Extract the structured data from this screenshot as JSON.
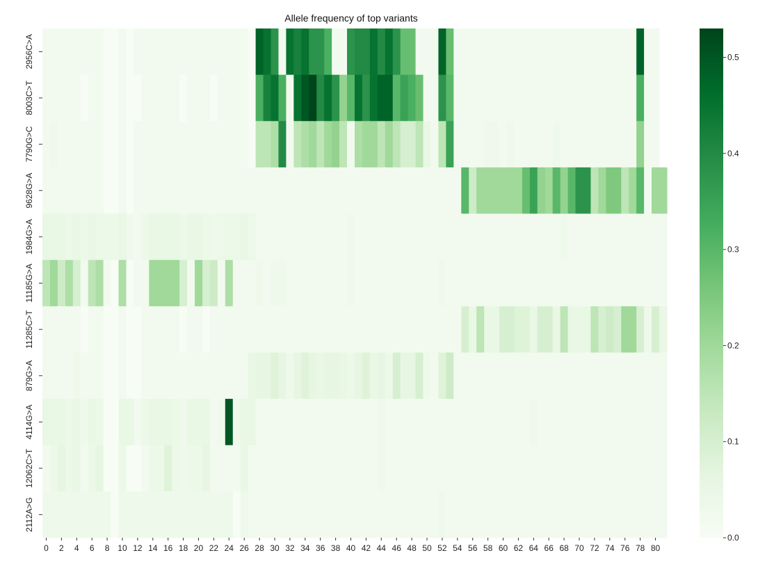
{
  "chart_data": {
    "type": "heatmap",
    "title": "Allele frequency of top variants",
    "xlabel": "",
    "ylabel": "",
    "x_tick_labels": [
      "0",
      "2",
      "4",
      "6",
      "8",
      "10",
      "12",
      "14",
      "16",
      "18",
      "20",
      "22",
      "24",
      "26",
      "28",
      "30",
      "32",
      "34",
      "36",
      "38",
      "40",
      "42",
      "44",
      "46",
      "48",
      "50",
      "52",
      "54",
      "56",
      "58",
      "60",
      "62",
      "64",
      "66",
      "68",
      "70",
      "72",
      "74",
      "76",
      "78",
      "80"
    ],
    "rows": [
      "2956C>A",
      "8003C>T",
      "7790G>C",
      "9628G>A",
      "1984G>A",
      "11185G>A",
      "11285C>T",
      "879G>A",
      "4114G>A",
      "12062C>T",
      "2112A>G"
    ],
    "colormap": "Greens",
    "colorbar": {
      "min": 0.0,
      "max": 0.53,
      "ticks": [
        "0.0",
        "0.1",
        "0.2",
        "0.3",
        "0.4",
        "0.5"
      ]
    },
    "values": [
      [
        0.02,
        0.02,
        0.02,
        0.02,
        0.02,
        0.02,
        0.02,
        0.02,
        0.0,
        0.0,
        0.02,
        0.0,
        0.02,
        0.02,
        0.02,
        0.02,
        0.02,
        0.02,
        0.02,
        0.02,
        0.02,
        0.02,
        0.02,
        0.02,
        0.02,
        0.02,
        0.02,
        0.0,
        0.48,
        0.45,
        0.38,
        0.02,
        0.45,
        0.42,
        0.45,
        0.38,
        0.38,
        0.32,
        0.02,
        0.02,
        0.38,
        0.4,
        0.4,
        0.45,
        0.4,
        0.45,
        0.38,
        0.28,
        0.28,
        0.02,
        0.02,
        0.02,
        0.48,
        0.28,
        0.02,
        0.02,
        0.02,
        0.02,
        0.02,
        0.02,
        0.02,
        0.02,
        0.02,
        0.02,
        0.02,
        0.02,
        0.02,
        0.02,
        0.02,
        0.02,
        0.02,
        0.02,
        0.02,
        0.02,
        0.02,
        0.02,
        0.02,
        0.02,
        0.48,
        0.02,
        0.02
      ],
      [
        0.02,
        0.02,
        0.02,
        0.02,
        0.02,
        0.0,
        0.02,
        0.02,
        0.0,
        0.0,
        0.02,
        0.0,
        0.0,
        0.02,
        0.02,
        0.02,
        0.02,
        0.02,
        0.0,
        0.02,
        0.02,
        0.02,
        0.0,
        0.02,
        0.02,
        0.02,
        0.02,
        0.0,
        0.32,
        0.42,
        0.45,
        0.32,
        0.02,
        0.45,
        0.5,
        0.53,
        0.4,
        0.45,
        0.38,
        0.22,
        0.3,
        0.45,
        0.38,
        0.45,
        0.48,
        0.48,
        0.3,
        0.35,
        0.32,
        0.28,
        0.02,
        0.02,
        0.38,
        0.3,
        0.02,
        0.02,
        0.02,
        0.02,
        0.02,
        0.02,
        0.02,
        0.02,
        0.02,
        0.02,
        0.02,
        0.02,
        0.02,
        0.02,
        0.02,
        0.02,
        0.02,
        0.02,
        0.02,
        0.02,
        0.02,
        0.02,
        0.02,
        0.02,
        0.32,
        0.02,
        0.02
      ],
      [
        0.02,
        0.03,
        0.02,
        0.02,
        0.02,
        0.02,
        0.02,
        0.02,
        0.0,
        0.0,
        0.02,
        0.0,
        0.02,
        0.02,
        0.02,
        0.02,
        0.02,
        0.02,
        0.02,
        0.02,
        0.02,
        0.02,
        0.02,
        0.02,
        0.02,
        0.02,
        0.02,
        0.0,
        0.15,
        0.15,
        0.18,
        0.4,
        0.02,
        0.15,
        0.18,
        0.2,
        0.15,
        0.2,
        0.22,
        0.15,
        0.02,
        0.18,
        0.2,
        0.2,
        0.15,
        0.2,
        0.15,
        0.1,
        0.1,
        0.15,
        0.05,
        0.02,
        0.15,
        0.35,
        0.02,
        0.02,
        0.02,
        0.02,
        0.03,
        0.03,
        0.02,
        0.03,
        0.02,
        0.02,
        0.02,
        0.02,
        0.02,
        0.03,
        0.02,
        0.02,
        0.02,
        0.02,
        0.02,
        0.02,
        0.02,
        0.02,
        0.02,
        0.02,
        0.22,
        0.02,
        0.02
      ],
      [
        0.02,
        0.02,
        0.02,
        0.02,
        0.02,
        0.02,
        0.02,
        0.02,
        0.0,
        0.0,
        0.02,
        0.0,
        0.02,
        0.02,
        0.02,
        0.02,
        0.02,
        0.02,
        0.02,
        0.02,
        0.02,
        0.02,
        0.02,
        0.02,
        0.02,
        0.02,
        0.02,
        0.02,
        0.02,
        0.02,
        0.02,
        0.02,
        0.02,
        0.02,
        0.02,
        0.02,
        0.02,
        0.02,
        0.02,
        0.02,
        0.02,
        0.02,
        0.02,
        0.02,
        0.02,
        0.02,
        0.02,
        0.02,
        0.02,
        0.02,
        0.02,
        0.02,
        0.02,
        0.02,
        0.02,
        0.3,
        0.12,
        0.2,
        0.2,
        0.2,
        0.2,
        0.2,
        0.2,
        0.28,
        0.35,
        0.22,
        0.2,
        0.3,
        0.22,
        0.3,
        0.38,
        0.38,
        0.15,
        0.2,
        0.25,
        0.25,
        0.15,
        0.2,
        0.3,
        0.02,
        0.2,
        0.2
      ],
      [
        0.05,
        0.05,
        0.05,
        0.04,
        0.05,
        0.04,
        0.05,
        0.04,
        0.04,
        0.04,
        0.05,
        0.03,
        0.02,
        0.04,
        0.05,
        0.05,
        0.05,
        0.05,
        0.04,
        0.05,
        0.05,
        0.04,
        0.03,
        0.04,
        0.04,
        0.04,
        0.05,
        0.04,
        0.02,
        0.02,
        0.02,
        0.02,
        0.02,
        0.02,
        0.02,
        0.02,
        0.02,
        0.02,
        0.02,
        0.02,
        0.03,
        0.02,
        0.02,
        0.02,
        0.02,
        0.02,
        0.02,
        0.02,
        0.02,
        0.02,
        0.02,
        0.02,
        0.02,
        0.02,
        0.02,
        0.02,
        0.02,
        0.02,
        0.02,
        0.02,
        0.02,
        0.02,
        0.02,
        0.02,
        0.02,
        0.02,
        0.02,
        0.02,
        0.03,
        0.02,
        0.02,
        0.02,
        0.02,
        0.02,
        0.02,
        0.02,
        0.02,
        0.02,
        0.02,
        0.02,
        0.02,
        0.02
      ],
      [
        0.15,
        0.2,
        0.12,
        0.18,
        0.1,
        0.02,
        0.15,
        0.18,
        0.02,
        0.0,
        0.18,
        0.0,
        0.02,
        0.02,
        0.2,
        0.2,
        0.2,
        0.2,
        0.1,
        0.02,
        0.2,
        0.1,
        0.12,
        0.02,
        0.18,
        0.02,
        0.02,
        0.02,
        0.03,
        0.02,
        0.03,
        0.03,
        0.02,
        0.02,
        0.02,
        0.02,
        0.02,
        0.02,
        0.02,
        0.02,
        0.03,
        0.02,
        0.02,
        0.02,
        0.02,
        0.02,
        0.02,
        0.02,
        0.02,
        0.02,
        0.02,
        0.02,
        0.03,
        0.02,
        0.02,
        0.02,
        0.02,
        0.02,
        0.02,
        0.02,
        0.02,
        0.02,
        0.02,
        0.02,
        0.02,
        0.02,
        0.02,
        0.02,
        0.02,
        0.02,
        0.02,
        0.02,
        0.02,
        0.02,
        0.02,
        0.02,
        0.02,
        0.02,
        0.02,
        0.02,
        0.02,
        0.02
      ],
      [
        0.02,
        0.02,
        0.02,
        0.02,
        0.02,
        0.0,
        0.02,
        0.02,
        0.0,
        0.0,
        0.02,
        0.0,
        0.0,
        0.02,
        0.02,
        0.02,
        0.02,
        0.02,
        0.0,
        0.02,
        0.02,
        0.0,
        0.02,
        0.02,
        0.02,
        0.02,
        0.02,
        0.02,
        0.02,
        0.02,
        0.02,
        0.02,
        0.02,
        0.02,
        0.02,
        0.02,
        0.02,
        0.02,
        0.02,
        0.02,
        0.02,
        0.02,
        0.02,
        0.02,
        0.02,
        0.02,
        0.02,
        0.02,
        0.02,
        0.02,
        0.02,
        0.02,
        0.02,
        0.02,
        0.02,
        0.1,
        0.05,
        0.15,
        0.05,
        0.05,
        0.1,
        0.1,
        0.08,
        0.08,
        0.05,
        0.1,
        0.1,
        0.05,
        0.15,
        0.05,
        0.05,
        0.05,
        0.15,
        0.1,
        0.12,
        0.1,
        0.2,
        0.2,
        0.1,
        0.03,
        0.1,
        0.05
      ],
      [
        0.02,
        0.02,
        0.02,
        0.02,
        0.03,
        0.02,
        0.02,
        0.02,
        0.0,
        0.0,
        0.02,
        0.0,
        0.0,
        0.02,
        0.02,
        0.02,
        0.02,
        0.02,
        0.02,
        0.02,
        0.02,
        0.02,
        0.02,
        0.02,
        0.02,
        0.02,
        0.02,
        0.05,
        0.06,
        0.06,
        0.08,
        0.06,
        0.03,
        0.06,
        0.08,
        0.06,
        0.05,
        0.06,
        0.06,
        0.05,
        0.04,
        0.06,
        0.08,
        0.05,
        0.06,
        0.04,
        0.1,
        0.06,
        0.06,
        0.1,
        0.03,
        0.02,
        0.08,
        0.12,
        0.02,
        0.02,
        0.02,
        0.02,
        0.02,
        0.02,
        0.02,
        0.02,
        0.02,
        0.02,
        0.02,
        0.02,
        0.02,
        0.02,
        0.02,
        0.02,
        0.02,
        0.02,
        0.02,
        0.02,
        0.02,
        0.02,
        0.02,
        0.02,
        0.02,
        0.02,
        0.02,
        0.02
      ],
      [
        0.05,
        0.05,
        0.05,
        0.04,
        0.05,
        0.03,
        0.05,
        0.04,
        0.0,
        0.0,
        0.05,
        0.05,
        0.02,
        0.04,
        0.05,
        0.05,
        0.05,
        0.04,
        0.03,
        0.05,
        0.05,
        0.05,
        0.02,
        0.03,
        0.5,
        0.03,
        0.05,
        0.05,
        0.02,
        0.02,
        0.02,
        0.02,
        0.02,
        0.02,
        0.02,
        0.02,
        0.02,
        0.02,
        0.02,
        0.02,
        0.02,
        0.02,
        0.02,
        0.02,
        0.03,
        0.02,
        0.02,
        0.02,
        0.02,
        0.02,
        0.02,
        0.02,
        0.02,
        0.02,
        0.02,
        0.02,
        0.02,
        0.02,
        0.02,
        0.02,
        0.02,
        0.02,
        0.02,
        0.02,
        0.03,
        0.02,
        0.02,
        0.02,
        0.02,
        0.02,
        0.02,
        0.02,
        0.02,
        0.02,
        0.02,
        0.02,
        0.02,
        0.02,
        0.02,
        0.02,
        0.02,
        0.02
      ],
      [
        0.02,
        0.04,
        0.06,
        0.04,
        0.05,
        0.02,
        0.04,
        0.06,
        0.0,
        0.0,
        0.04,
        0.0,
        0.0,
        0.02,
        0.04,
        0.04,
        0.08,
        0.04,
        0.03,
        0.04,
        0.04,
        0.06,
        0.02,
        0.02,
        0.02,
        0.02,
        0.05,
        0.02,
        0.02,
        0.02,
        0.02,
        0.02,
        0.02,
        0.02,
        0.02,
        0.02,
        0.02,
        0.02,
        0.02,
        0.02,
        0.02,
        0.02,
        0.02,
        0.02,
        0.03,
        0.02,
        0.02,
        0.02,
        0.02,
        0.02,
        0.02,
        0.02,
        0.02,
        0.02,
        0.02,
        0.02,
        0.02,
        0.02,
        0.02,
        0.02,
        0.02,
        0.02,
        0.02,
        0.02,
        0.02,
        0.02,
        0.02,
        0.02,
        0.02,
        0.02,
        0.02,
        0.02,
        0.02,
        0.02,
        0.02,
        0.02,
        0.02,
        0.02,
        0.02,
        0.02,
        0.02,
        0.02
      ],
      [
        0.03,
        0.03,
        0.03,
        0.03,
        0.03,
        0.03,
        0.03,
        0.03,
        0.03,
        0.0,
        0.03,
        0.03,
        0.03,
        0.03,
        0.03,
        0.03,
        0.03,
        0.03,
        0.03,
        0.03,
        0.03,
        0.03,
        0.03,
        0.03,
        0.04,
        0.0,
        0.03,
        0.02,
        0.02,
        0.02,
        0.02,
        0.02,
        0.02,
        0.02,
        0.02,
        0.02,
        0.02,
        0.02,
        0.02,
        0.02,
        0.02,
        0.02,
        0.02,
        0.02,
        0.02,
        0.02,
        0.02,
        0.02,
        0.02,
        0.02,
        0.02,
        0.02,
        0.03,
        0.02,
        0.02,
        0.02,
        0.02,
        0.02,
        0.02,
        0.02,
        0.02,
        0.02,
        0.02,
        0.02,
        0.02,
        0.02,
        0.02,
        0.02,
        0.02,
        0.02,
        0.02,
        0.02,
        0.02,
        0.02,
        0.02,
        0.02,
        0.02,
        0.02,
        0.02,
        0.02,
        0.02,
        0.02
      ]
    ]
  }
}
